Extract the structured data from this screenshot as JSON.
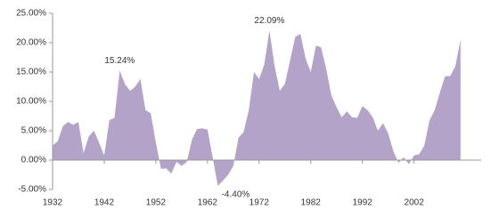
{
  "chart_data": {
    "type": "area",
    "x": [
      1932,
      1933,
      1934,
      1935,
      1936,
      1937,
      1938,
      1939,
      1940,
      1941,
      1942,
      1943,
      1944,
      1945,
      1946,
      1947,
      1948,
      1949,
      1950,
      1951,
      1952,
      1953,
      1954,
      1955,
      1956,
      1957,
      1958,
      1959,
      1960,
      1961,
      1962,
      1963,
      1964,
      1965,
      1966,
      1967,
      1968,
      1969,
      1970,
      1971,
      1972,
      1973,
      1974,
      1975,
      1976,
      1977,
      1978,
      1979,
      1980,
      1981,
      1982,
      1983,
      1984,
      1985,
      1986,
      1987,
      1988,
      1989,
      1990,
      1991,
      1992,
      1993,
      1994,
      1995,
      1996,
      1997,
      1998,
      1999,
      2000,
      2001,
      2002,
      2003,
      2004,
      2005,
      2006,
      2007,
      2008,
      2009,
      2010,
      2011
    ],
    "values": [
      2.5,
      3.2,
      5.8,
      6.5,
      6.0,
      6.5,
      1.2,
      4.0,
      5.0,
      3.0,
      0.8,
      6.8,
      7.2,
      15.24,
      13.0,
      11.8,
      12.5,
      13.8,
      8.5,
      8.0,
      3.0,
      -1.5,
      -1.4,
      -2.3,
      -0.3,
      -1.0,
      -0.3,
      3.5,
      5.3,
      5.4,
      5.2,
      0.5,
      -4.4,
      -3.5,
      -2.5,
      -1.0,
      3.8,
      4.8,
      8.5,
      15.0,
      13.8,
      16.3,
      22.09,
      16.0,
      11.8,
      13.0,
      17.0,
      21.0,
      21.5,
      17.3,
      15.0,
      19.5,
      19.2,
      15.5,
      11.0,
      9.0,
      7.3,
      8.3,
      7.3,
      7.2,
      9.2,
      8.5,
      7.3,
      5.0,
      6.3,
      4.5,
      1.5,
      -0.5,
      0.5,
      -0.7,
      0.8,
      1.0,
      2.5,
      6.8,
      8.5,
      11.5,
      14.3,
      14.3,
      16.0,
      20.5
    ],
    "value_labels": [
      null,
      null,
      null,
      null,
      null,
      null,
      null,
      null,
      null,
      null,
      null,
      null,
      null,
      "15.24%",
      null,
      null,
      null,
      null,
      null,
      null,
      null,
      null,
      null,
      null,
      null,
      null,
      null,
      null,
      null,
      null,
      null,
      null,
      "-4.40%",
      null,
      null,
      null,
      null,
      null,
      null,
      null,
      null,
      null,
      "22.09%",
      null,
      null,
      null,
      null,
      null,
      null,
      null,
      null,
      null,
      null,
      null,
      null,
      null,
      null,
      null,
      null,
      null,
      null,
      null,
      null,
      null,
      null,
      null,
      null,
      null,
      null,
      null,
      null,
      null,
      null,
      null,
      null,
      null,
      null,
      null,
      null,
      null
    ],
    "color": "#b3a3c8",
    "xlim": [
      1932,
      2015
    ],
    "xticks": [
      1932,
      1942,
      1952,
      1962,
      1972,
      1982,
      1992,
      2002
    ],
    "ylim": [
      -5,
      25
    ],
    "yticks": [
      {
        "value": -5,
        "label": "-5.00%"
      },
      {
        "value": 0,
        "label": "0.00%"
      },
      {
        "value": 5,
        "label": "5.00%"
      },
      {
        "value": 10,
        "label": "10.00%"
      },
      {
        "value": 15,
        "label": "15.00%"
      },
      {
        "value": 20,
        "label": "20.00%"
      },
      {
        "value": 25,
        "label": "25.00%"
      }
    ],
    "grid": false
  }
}
